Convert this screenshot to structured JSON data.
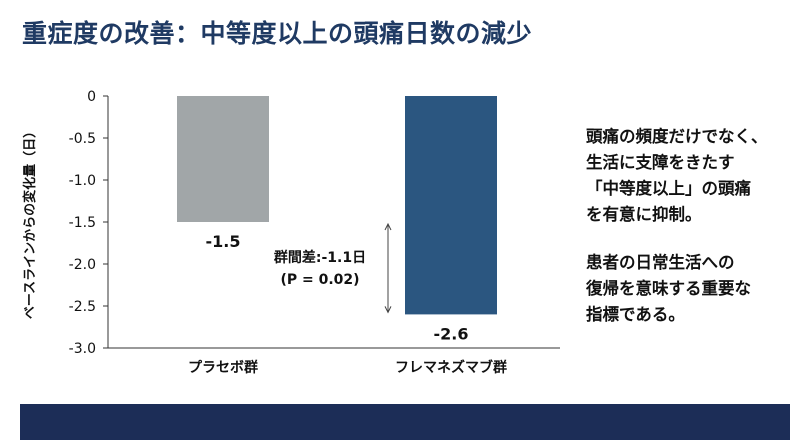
{
  "title": "重症度の改善：中等度以上の頭痛日数の減少",
  "chart_data": {
    "type": "bar",
    "categories": [
      "プラセボ群",
      "フレマネズマブ群"
    ],
    "values": [
      -1.5,
      -2.6
    ],
    "value_labels": [
      "-1.5",
      "-2.6"
    ],
    "ylabel": "ベースラインからの変化量（日）",
    "ylim": [
      -3.0,
      0
    ],
    "yticks": [
      0,
      -0.5,
      -1.0,
      -1.5,
      -2.0,
      -2.5,
      -3.0
    ],
    "ytick_labels": [
      "0",
      "-0.5",
      "-1.0",
      "-1.5",
      "-2.0",
      "-2.5",
      "-3.0"
    ],
    "bar_colors": [
      "#a1a6a8",
      "#2b5680"
    ],
    "annotation": {
      "line1": "群間差:-1.1日",
      "line2": "(P = 0.02)",
      "from": -1.5,
      "to": -2.6
    }
  },
  "notes": [
    "頭痛の頻度だけでなく、\n生活に支障をきたす\n「中等度以上」の頭痛\nを有意に抑制。",
    "患者の日常生活への\n復帰を意味する重要な\n指標である。"
  ]
}
